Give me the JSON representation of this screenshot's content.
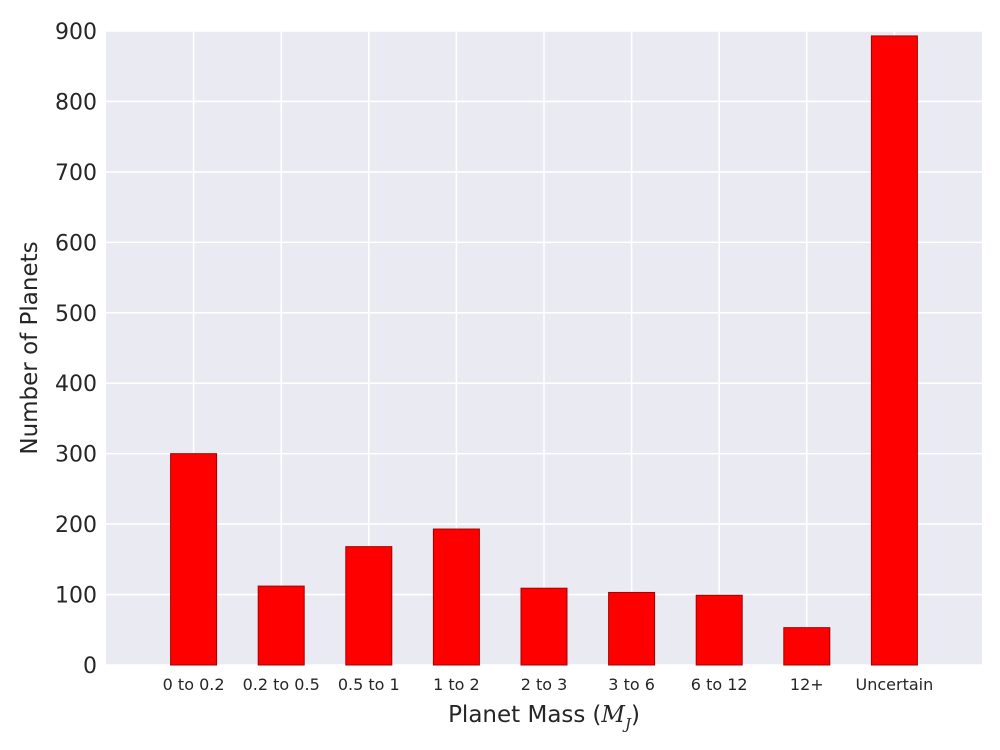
{
  "chart_data": {
    "type": "bar",
    "title": "",
    "xlabel": "Planet Mass",
    "xlabel_unit_open": "(",
    "xlabel_unit_var": "M",
    "xlabel_unit_sub": "J",
    "xlabel_unit_close": ")",
    "ylabel": "Number of Planets",
    "categories": [
      "0 to 0.2",
      "0.2 to 0.5",
      "0.5 to 1",
      "1 to 2",
      "2 to 3",
      "3 to 6",
      "6 to 12",
      "12+",
      "Uncertain"
    ],
    "values": [
      300,
      112,
      168,
      193,
      109,
      103,
      99,
      53,
      893
    ],
    "ylim": [
      0,
      900
    ],
    "yticks": [
      "0",
      "100",
      "200",
      "300",
      "400",
      "500",
      "600",
      "700",
      "800",
      "900"
    ],
    "grid": true,
    "legend": "none",
    "colors": {
      "bar_fill": "#ff0000",
      "bar_edge": "#a30000",
      "plot_background": "#eaeaf2",
      "grid": "#ffffff",
      "text": "#262626"
    }
  }
}
